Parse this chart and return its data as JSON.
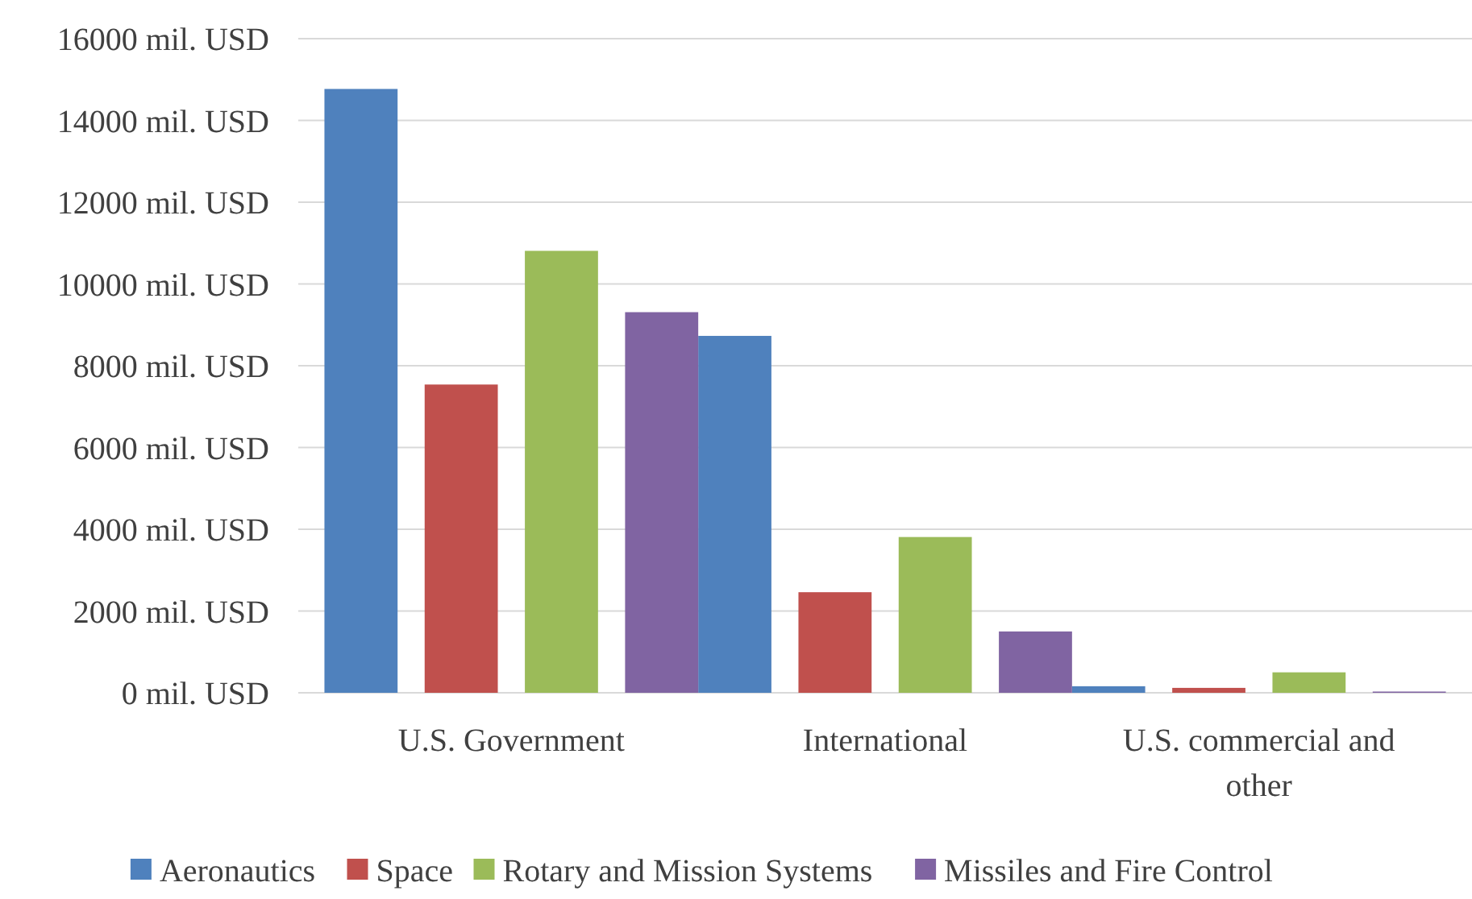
{
  "chart_data": {
    "type": "bar",
    "categories": [
      "U.S. Government",
      "International",
      "U.S. commercial and other"
    ],
    "series": [
      {
        "name": "Aeronautics",
        "color": "#4f81bd",
        "values": [
          14770,
          8730,
          160
        ]
      },
      {
        "name": "Space",
        "color": "#c0504d",
        "values": [
          7540,
          2460,
          120
        ]
      },
      {
        "name": "Rotary and Mission Systems",
        "color": "#9bbb59",
        "values": [
          10810,
          3810,
          500
        ]
      },
      {
        "name": "Missiles and Fire Control",
        "color": "#8064a2",
        "values": [
          9310,
          1500,
          30
        ]
      }
    ],
    "ylim": [
      0,
      16000
    ],
    "yticks": [
      {
        "value": 0,
        "label": "0 mil. USD"
      },
      {
        "value": 2000,
        "label": "2000 mil. USD"
      },
      {
        "value": 4000,
        "label": "4000 mil. USD"
      },
      {
        "value": 6000,
        "label": "6000 mil. USD"
      },
      {
        "value": 8000,
        "label": "8000 mil. USD"
      },
      {
        "value": 10000,
        "label": "10000 mil. USD"
      },
      {
        "value": 12000,
        "label": "12000 mil. USD"
      },
      {
        "value": 14000,
        "label": "14000 mil. USD"
      },
      {
        "value": 16000,
        "label": "16000 mil. USD"
      }
    ],
    "grid": "y",
    "legend": "bottom"
  }
}
